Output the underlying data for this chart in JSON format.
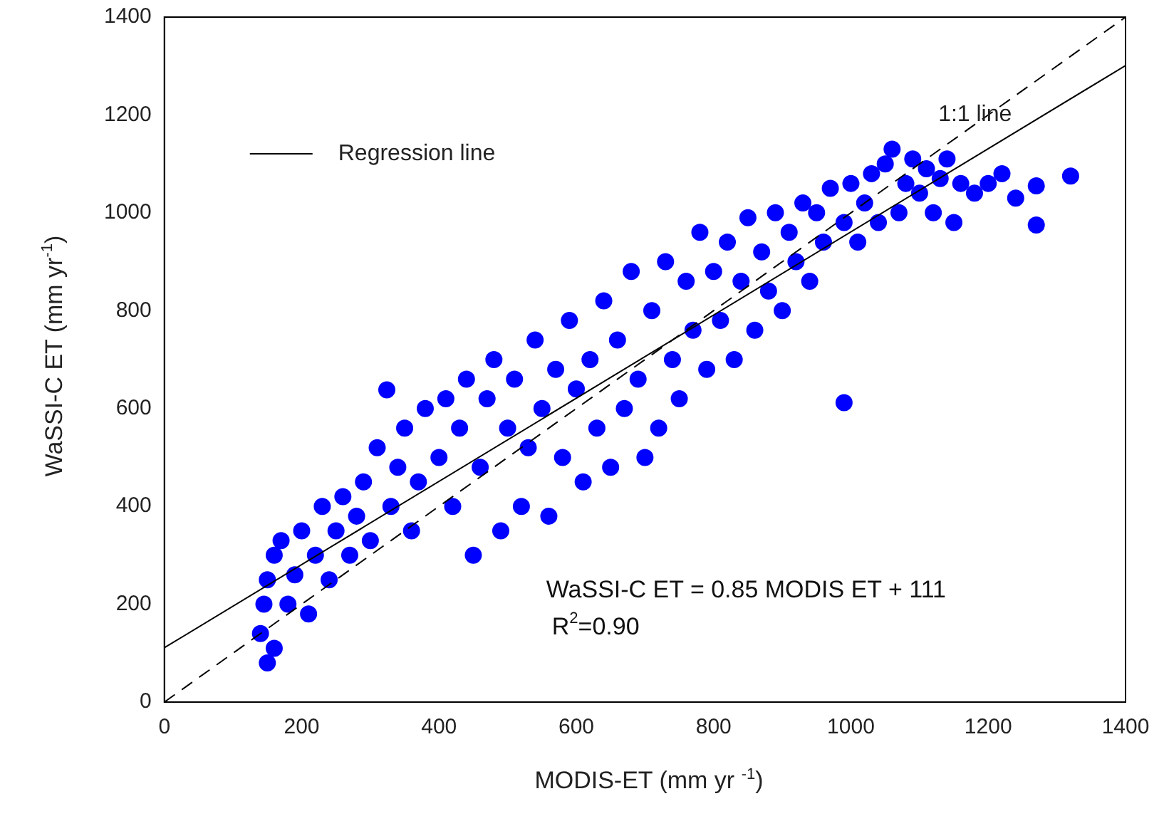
{
  "chart_data": {
    "type": "scatter",
    "xlabel": "MODIS-ET  (mm yr $^{-1}$)",
    "ylabel": "WaSSI-C ET (mm yr$^{-1}$)",
    "xlim": [
      0,
      1400
    ],
    "xticks": [
      0,
      200,
      400,
      600,
      800,
      1000,
      1200,
      1400
    ],
    "ylim": [
      0,
      1400
    ],
    "yticks": [
      0,
      200,
      400,
      600,
      800,
      1000,
      1200,
      1400
    ],
    "grid": false,
    "legend": "top left",
    "marker": "circle",
    "annotations": [
      "WaSSI-C ET = 0.85 MODIS ET + 111",
      "R$^{2}$=0.90"
    ],
    "series": [
      {
        "color": "#0000ff",
        "x": [
          150,
          160,
          140,
          145,
          150,
          160,
          170,
          180,
          190,
          200,
          210,
          220,
          230,
          240,
          250,
          260,
          270,
          280,
          290,
          300,
          310,
          324,
          330,
          340,
          350,
          360,
          370,
          380,
          400,
          410,
          420,
          430,
          440,
          450,
          460,
          470,
          480,
          490,
          500,
          510,
          520,
          530,
          540,
          550,
          560,
          570,
          580,
          590,
          600,
          610,
          620,
          630,
          640,
          650,
          660,
          670,
          680,
          690,
          700,
          710,
          720,
          730,
          740,
          750,
          760,
          770,
          780,
          790,
          800,
          810,
          820,
          830,
          840,
          850,
          860,
          870,
          880,
          890,
          900,
          910,
          920,
          930,
          940,
          950,
          960,
          970,
          990,
          990,
          1000,
          1010,
          1020,
          1030,
          1040,
          1050,
          1060,
          1070,
          1080,
          1090,
          1100,
          1110,
          1120,
          1130,
          1140,
          1150,
          1160,
          1180,
          1200,
          1220,
          1240,
          1270,
          1270,
          1320
        ],
        "values": [
          80,
          110,
          140,
          200,
          250,
          300,
          330,
          200,
          260,
          350,
          180,
          300,
          400,
          250,
          350,
          420,
          300,
          380,
          450,
          330,
          520,
          638,
          400,
          480,
          560,
          350,
          450,
          600,
          500,
          620,
          400,
          560,
          660,
          300,
          480,
          620,
          700,
          350,
          560,
          660,
          400,
          520,
          740,
          600,
          380,
          680,
          500,
          780,
          640,
          450,
          700,
          560,
          820,
          480,
          740,
          600,
          880,
          660,
          500,
          800,
          560,
          900,
          700,
          620,
          860,
          760,
          960,
          680,
          880,
          780,
          940,
          700,
          860,
          990,
          760,
          920,
          840,
          1000,
          800,
          960,
          900,
          1020,
          860,
          1000,
          940,
          1050,
          612,
          980,
          1060,
          940,
          1020,
          1080,
          980,
          1100,
          1130,
          1000,
          1060,
          1110,
          1040,
          1090,
          1000,
          1070,
          1110,
          980,
          1060,
          1040,
          1060,
          1080,
          1030,
          1055,
          975,
          1075
        ]
      },
      {
        "type": "line",
        "name": "Regression line",
        "color": "#000000",
        "line_style": "solid",
        "marker": "none",
        "x": [
          0,
          1400
        ],
        "values": [
          111,
          1301
        ]
      },
      {
        "type": "line",
        "name": "1:1 line",
        "color": "#000000",
        "line_style": "dashed",
        "marker": "none",
        "x": [
          0,
          1400
        ],
        "values": [
          0,
          1400
        ]
      }
    ]
  }
}
